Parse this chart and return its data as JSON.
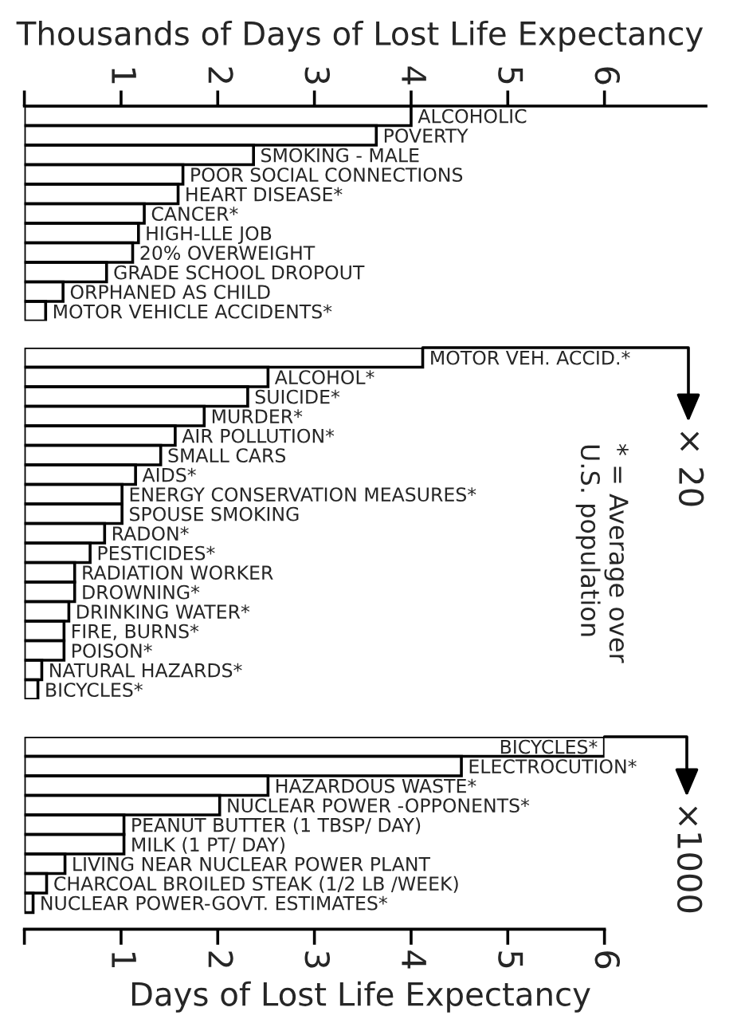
{
  "chart_data": [
    {
      "type": "bar",
      "orientation": "horizontal",
      "xlabel": "Thousands of Days of Lost Life Expectancy",
      "categories": [
        "ALCOHOLIC",
        "POVERTY",
        "SMOKING - MALE",
        "POOR SOCIAL CONNECTIONS",
        "HEART DISEASE*",
        "CANCER*",
        "HIGH-LLE JOB",
        "20% OVERWEIGHT",
        "GRADE SCHOOL DROPOUT",
        "ORPHANED AS CHILD",
        "MOTOR VEHICLE ACCIDENTS*"
      ],
      "values": [
        4.0,
        3.64,
        2.37,
        1.64,
        1.59,
        1.24,
        1.18,
        1.12,
        0.85,
        0.4,
        0.22
      ],
      "color": "#000000",
      "xlim": [
        0,
        7.05
      ],
      "xticks": [
        {
          "value": 0,
          "label": null
        },
        1,
        2,
        3,
        4,
        5,
        6
      ],
      "tick_labels": "x"
    },
    {
      "type": "bar",
      "orientation": "horizontal",
      "categories": [
        "MOTOR VEH. ACCID.*",
        "ALCOHOL*",
        "SUICIDE*",
        "MURDER*",
        "AIR POLLUTION*",
        "SMALL CARS",
        "AIDS*",
        "ENERGY CONSERVATION MEASURES*",
        "SPOUSE SMOKING",
        "RADON*",
        "PESTICIDES*",
        "RADIATION WORKER",
        "DROWNING*",
        "DRINKING WATER*",
        "FIRE, BURNS*",
        "POISON*",
        "NATURAL HAZARDS*",
        "BICYCLES*"
      ],
      "values": [
        4.12,
        2.52,
        2.31,
        1.86,
        1.56,
        1.41,
        1.15,
        1.01,
        1.01,
        0.83,
        0.68,
        0.52,
        0.52,
        0.46,
        0.41,
        0.41,
        0.18,
        0.14
      ],
      "color": "#000000",
      "xlim": [
        0,
        6
      ],
      "tick_labels": false,
      "annotations": [
        "× 20",
        "* = Average over\nU.S. population"
      ]
    },
    {
      "type": "bar",
      "orientation": "horizontal",
      "xlabel": "Days of Lost Life Expectancy",
      "categories": [
        "BICYCLES*",
        "ELECTROCUTION*",
        "HAZARDOUS WASTE*",
        "NUCLEAR POWER -OPPONENTS*",
        "PEANUT BUTTER (1 TBSP/ DAY)",
        "MILK (1 PT/ DAY)",
        "LIVING NEAR NUCLEAR POWER PLANT",
        "CHARCOAL BROILED STEAK (1/2 LB /WEEK)",
        "NUCLEAR POWER-GOVT. ESTIMATES*"
      ],
      "values": [
        6.0,
        4.52,
        2.52,
        2.02,
        1.03,
        1.03,
        0.42,
        0.23,
        0.09
      ],
      "color": "#000000",
      "xlim": [
        0,
        6
      ],
      "xticks": [
        {
          "value": 0,
          "label": null
        },
        1,
        2,
        3,
        4,
        5,
        6
      ],
      "tick_labels": "x",
      "annotations": [
        "×1000"
      ]
    }
  ]
}
